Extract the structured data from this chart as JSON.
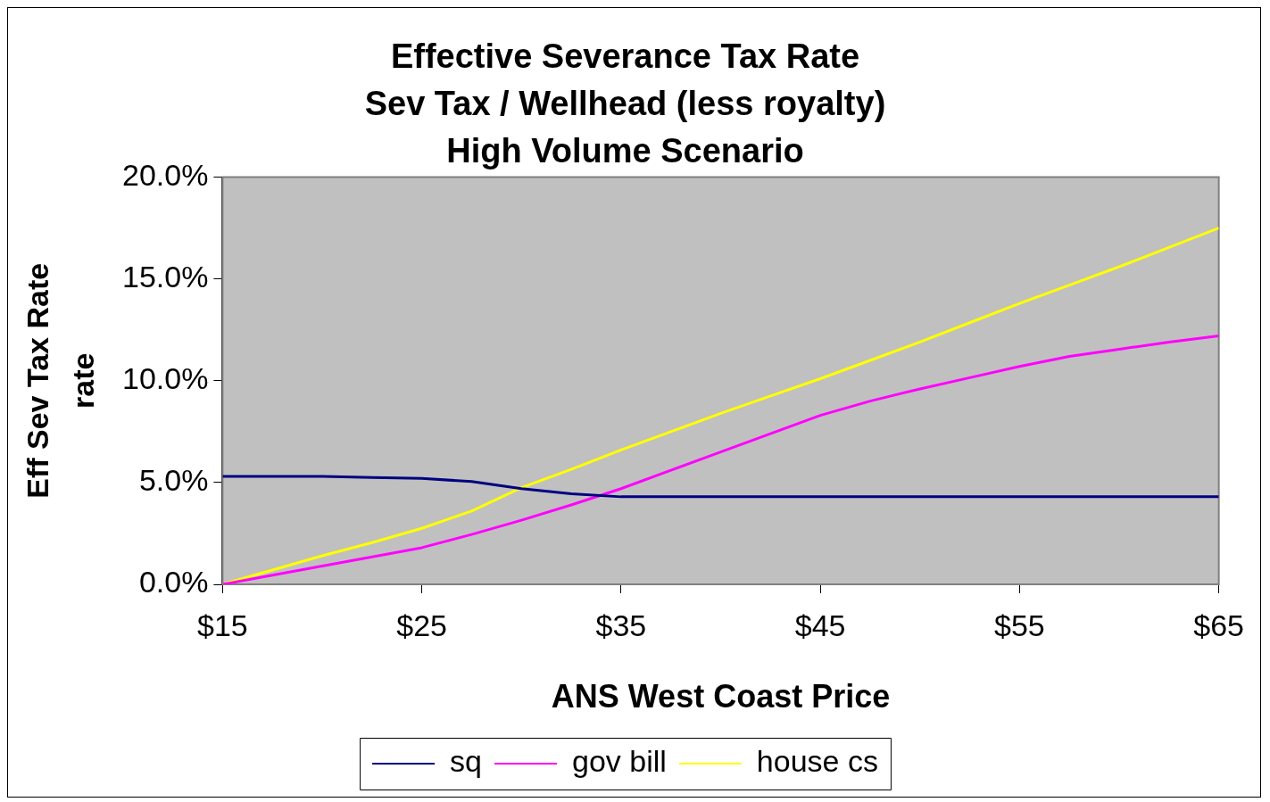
{
  "chart_data": {
    "type": "line",
    "title": "Effective Severance Tax Rate\nSev Tax / Wellhead (less royalty)\nHigh Volume Scenario",
    "xlabel": "ANS West Coast Price",
    "ylabel": "Eff Sev Tax Rate\nrate",
    "x": [
      15,
      17.5,
      20,
      22.5,
      25,
      27.5,
      30,
      32.5,
      35,
      37.5,
      40,
      42.5,
      45,
      47.5,
      50,
      52.5,
      55,
      57.5,
      60,
      62.5,
      65
    ],
    "series": [
      {
        "name": "sq",
        "color": "#000080",
        "values": [
          5.3,
          5.3,
          5.3,
          5.25,
          5.2,
          5.05,
          4.7,
          4.45,
          4.3,
          4.3,
          4.3,
          4.3,
          4.3,
          4.3,
          4.3,
          4.3,
          4.3,
          4.3,
          4.3,
          4.3,
          4.3
        ]
      },
      {
        "name": "gov bill",
        "color": "#ff00ff",
        "values": [
          0,
          0.45,
          0.9,
          1.35,
          1.8,
          2.45,
          3.15,
          3.9,
          4.7,
          5.6,
          6.5,
          7.4,
          8.3,
          9.0,
          9.6,
          10.15,
          10.7,
          11.2,
          11.55,
          11.9,
          12.2
        ]
      },
      {
        "name": "house cs",
        "color": "#ffff00",
        "values": [
          0,
          0.7,
          1.4,
          2.05,
          2.75,
          3.6,
          4.75,
          5.65,
          6.6,
          7.5,
          8.4,
          9.25,
          10.1,
          11.0,
          11.9,
          12.85,
          13.8,
          14.7,
          15.6,
          16.55,
          17.5
        ]
      }
    ],
    "xlim": [
      15,
      65
    ],
    "xticks": [
      {
        "value": 15,
        "label": "$15"
      },
      {
        "value": 25,
        "label": "$25"
      },
      {
        "value": 35,
        "label": "$35"
      },
      {
        "value": 45,
        "label": "$45"
      },
      {
        "value": 55,
        "label": "$55"
      },
      {
        "value": 65,
        "label": "$65"
      }
    ],
    "ylim": [
      0,
      20
    ],
    "yticks": [
      {
        "value": 0,
        "label": "0.0%"
      },
      {
        "value": 5,
        "label": "5.0%"
      },
      {
        "value": 10,
        "label": "10.0%"
      },
      {
        "value": 15,
        "label": "15.0%"
      },
      {
        "value": 20,
        "label": "20.0%"
      }
    ],
    "legend": "bottom",
    "marker": "none",
    "line_style": "solid"
  }
}
